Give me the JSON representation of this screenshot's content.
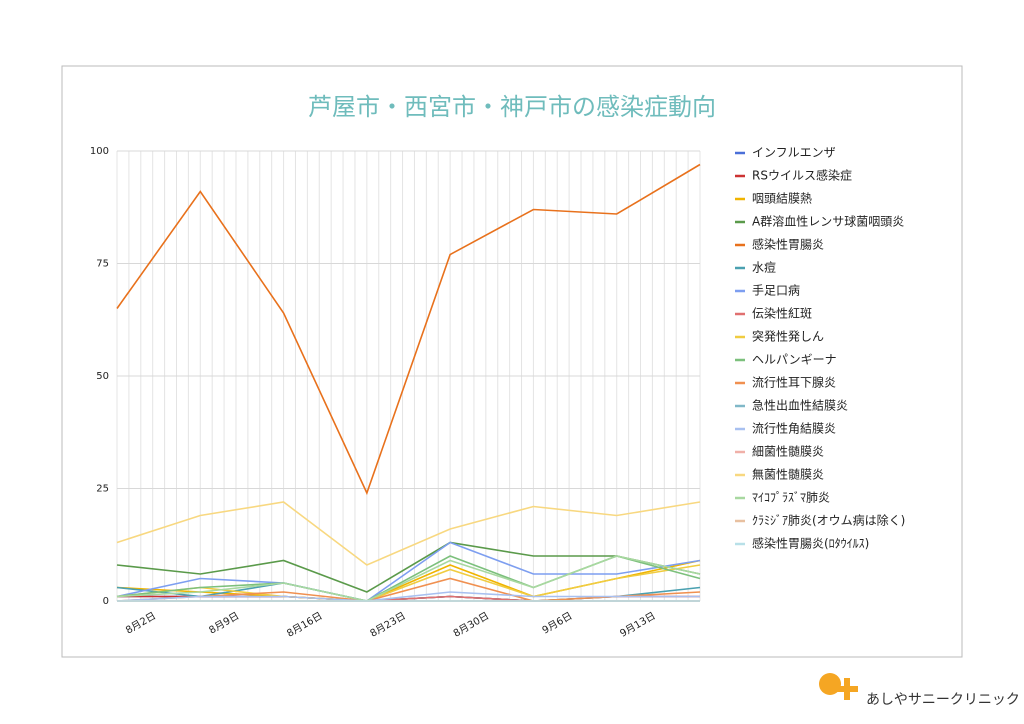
{
  "chart_data": {
    "type": "line",
    "title": "芦屋市・西宮市・神戸市の感染症動向",
    "categories": [
      "8月2日",
      "8月9日",
      "8月16日",
      "8月23日",
      "8月30日",
      "9月6日",
      "9月13日",
      null
    ],
    "ylim": [
      0,
      100
    ],
    "yticks": [
      0,
      25,
      50,
      75,
      100
    ],
    "grid": true,
    "series": [
      {
        "name": "インフルエンザ",
        "color": "#4a6fd8",
        "values": [
          1,
          1,
          1,
          0,
          1,
          0,
          0,
          0
        ]
      },
      {
        "name": "RSウイルス感染症",
        "color": "#cc3333",
        "values": [
          1,
          1,
          1,
          0,
          1,
          0,
          1,
          1
        ]
      },
      {
        "name": "咽頭結膜熱",
        "color": "#f0b400",
        "values": [
          3,
          2,
          1,
          0,
          8,
          1,
          5,
          9
        ]
      },
      {
        "name": "A群溶血性レンサ球菌咽頭炎",
        "color": "#5a9a4a",
        "values": [
          8,
          6,
          9,
          2,
          13,
          10,
          10,
          6
        ]
      },
      {
        "name": "感染性胃腸炎",
        "color": "#e8711c",
        "values": [
          65,
          91,
          64,
          24,
          77,
          87,
          86,
          97
        ]
      },
      {
        "name": "水痘",
        "color": "#4aa0b0",
        "values": [
          3,
          1,
          4,
          0,
          1,
          0,
          1,
          3
        ]
      },
      {
        "name": "手足口病",
        "color": "#7d9ef0",
        "values": [
          1,
          5,
          4,
          0,
          13,
          6,
          6,
          9
        ]
      },
      {
        "name": "伝染性紅斑",
        "color": "#e07070",
        "values": [
          0,
          0,
          0,
          0,
          1,
          0,
          0,
          0
        ]
      },
      {
        "name": "突発性発しん",
        "color": "#f0cc40",
        "values": [
          1,
          3,
          1,
          0,
          7,
          1,
          5,
          8
        ]
      },
      {
        "name": "ヘルパンギーナ",
        "color": "#7cc07c",
        "values": [
          1,
          3,
          4,
          0,
          10,
          3,
          10,
          5
        ]
      },
      {
        "name": "流行性耳下腺炎",
        "color": "#f09050",
        "values": [
          0,
          1,
          2,
          0,
          5,
          0,
          1,
          2
        ]
      },
      {
        "name": "急性出血性結膜炎",
        "color": "#80b8c8",
        "values": [
          0,
          0,
          0,
          0,
          0,
          0,
          0,
          0
        ]
      },
      {
        "name": "流行性角結膜炎",
        "color": "#a8c0f0",
        "values": [
          0,
          1,
          1,
          0,
          2,
          1,
          1,
          1
        ]
      },
      {
        "name": "細菌性髄膜炎",
        "color": "#f0b0a8",
        "values": [
          0,
          0,
          0,
          0,
          0,
          0,
          0,
          0
        ]
      },
      {
        "name": "無菌性髄膜炎",
        "color": "#f8d880",
        "values": [
          13,
          19,
          22,
          8,
          16,
          21,
          19,
          22
        ]
      },
      {
        "name": "ﾏｲｺﾌﾟﾗｽﾞﾏ肺炎",
        "color": "#a8d8a0",
        "values": [
          1,
          2,
          4,
          0,
          9,
          3,
          10,
          6
        ]
      },
      {
        "name": "ｸﾗﾐｼﾞｱ肺炎(オウム病は除く)",
        "color": "#e8c0a0",
        "values": [
          0,
          0,
          0,
          0,
          0,
          0,
          0,
          0
        ]
      },
      {
        "name": "感染性胃腸炎(ﾛﾀｳｲﾙｽ)",
        "color": "#b8e0e8",
        "values": [
          0,
          0,
          0,
          0,
          0,
          0,
          0,
          0
        ]
      }
    ]
  },
  "logo_text": "あしやサニークリニック"
}
